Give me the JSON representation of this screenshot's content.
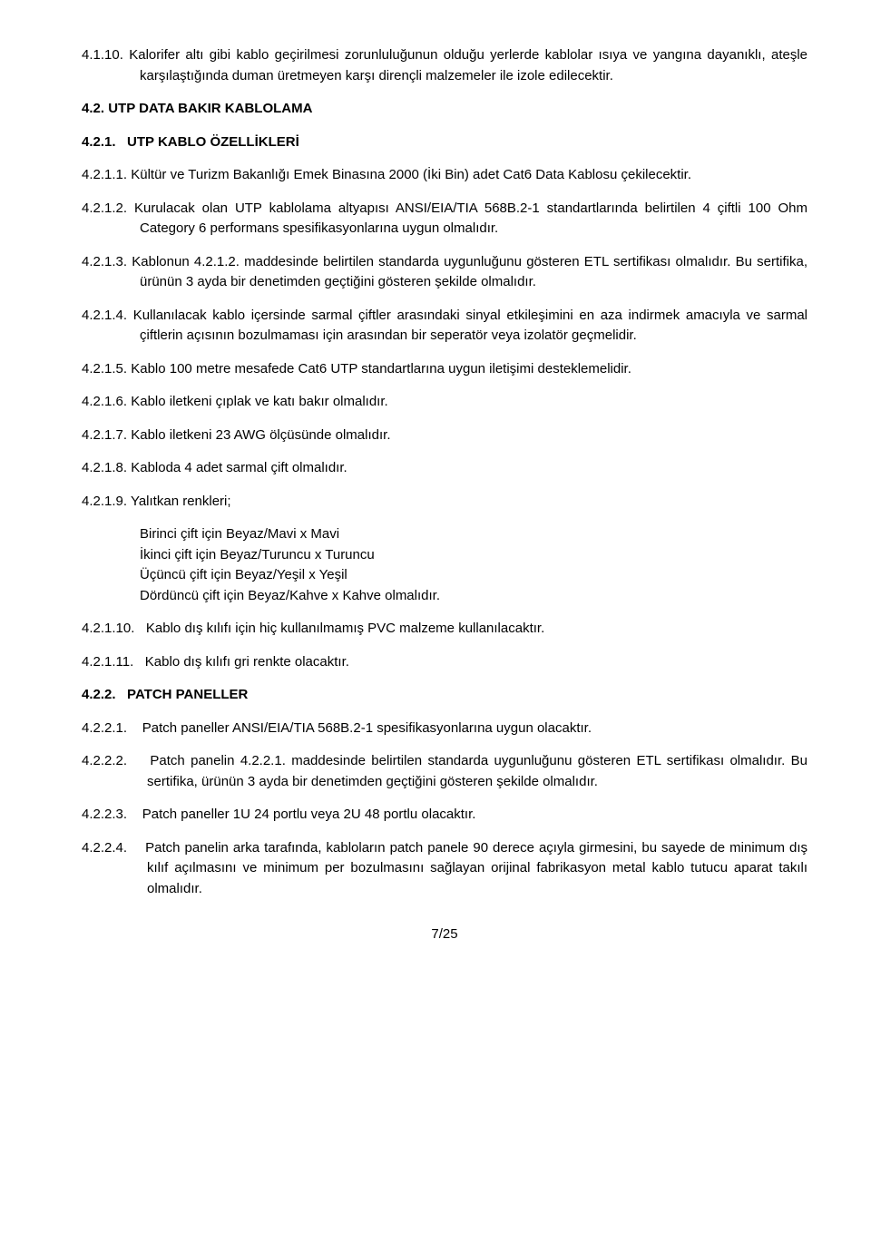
{
  "p_4_1_10": {
    "num": "4.1.10.",
    "text": "Kalorifer altı gibi kablo geçirilmesi zorunluluğunun olduğu yerlerde kablolar ısıya ve yangına dayanıklı, ateşle karşılaştığında duman üretmeyen karşı dirençli malzemeler ile izole edilecektir."
  },
  "h_4_2": {
    "num": "4.2.",
    "text": "UTP  DATA  BAKIR  KABLOLAMA"
  },
  "h_4_2_1": {
    "num": "4.2.1.",
    "text": "UTP KABLO ÖZELLİKLERİ"
  },
  "p_4_2_1_1": {
    "num": "4.2.1.1.",
    "text": "Kültür ve Turizm Bakanlığı Emek Binasına 2000 (İki Bin) adet Cat6 Data Kablosu çekilecektir."
  },
  "p_4_2_1_2": {
    "num": "4.2.1.2.",
    "text": "Kurulacak olan UTP kablolama altyapısı ANSI/EIA/TIA 568B.2-1 standartlarında belirtilen 4 çiftli 100 Ohm Category 6 performans spesifikasyonlarına uygun olmalıdır."
  },
  "p_4_2_1_3": {
    "num": "4.2.1.3.",
    "text": "Kablonun 4.2.1.2. maddesinde belirtilen standarda uygunluğunu gösteren ETL sertifikası olmalıdır. Bu sertifika, ürünün 3  ayda bir denetimden geçtiğini gösteren şekilde olmalıdır."
  },
  "p_4_2_1_4": {
    "num": "4.2.1.4.",
    "text": "Kullanılacak kablo içersinde sarmal çiftler arasındaki sinyal etkileşimini en aza indirmek amacıyla ve sarmal çiftlerin açısının bozulmaması için arasından bir seperatör veya izolatör geçmelidir."
  },
  "p_4_2_1_5": {
    "num": "4.2.1.5.",
    "text": "Kablo 100 metre mesafede Cat6 UTP standartlarına uygun iletişimi desteklemelidir."
  },
  "p_4_2_1_6": {
    "num": "4.2.1.6.",
    "text": "Kablo iletkeni çıplak ve katı bakır olmalıdır."
  },
  "p_4_2_1_7": {
    "num": "4.2.1.7.",
    "text": "Kablo iletkeni 23 AWG ölçüsünde olmalıdır."
  },
  "p_4_2_1_8": {
    "num": "4.2.1.8.",
    "text": "Kabloda 4 adet sarmal çift olmalıdır."
  },
  "p_4_2_1_9": {
    "num": "4.2.1.9.",
    "text": "Yalıtkan renkleri;"
  },
  "colors": {
    "line1": "Birinci çift için Beyaz/Mavi x Mavi",
    "line2": "İkinci çift için Beyaz/Turuncu x Turuncu",
    "line3": "Üçüncü çift için Beyaz/Yeşil x Yeşil",
    "line4": "Dördüncü çift için Beyaz/Kahve x Kahve olmalıdır."
  },
  "p_4_2_1_10": {
    "num": "4.2.1.10.",
    "text": "Kablo dış kılıfı için hiç kullanılmamış PVC malzeme kullanılacaktır."
  },
  "p_4_2_1_11": {
    "num": "4.2.1.11.",
    "text": "Kablo dış kılıfı gri renkte olacaktır."
  },
  "h_4_2_2": {
    "num": "4.2.2.",
    "text": "PATCH PANELLER"
  },
  "p_4_2_2_1": {
    "num": "4.2.2.1.",
    "text": "Patch paneller ANSI/EIA/TIA 568B.2-1 spesifikasyonlarına uygun olacaktır."
  },
  "p_4_2_2_2": {
    "num": "4.2.2.2.",
    "text": "Patch panelin 4.2.2.1. maddesinde belirtilen standarda uygunluğunu gösteren ETL sertifikası olmalıdır. Bu sertifika, ürünün 3 ayda bir denetimden geçtiğini gösteren şekilde olmalıdır."
  },
  "p_4_2_2_3": {
    "num": "4.2.2.3.",
    "text": "Patch paneller 1U 24 portlu veya 2U 48 portlu olacaktır."
  },
  "p_4_2_2_4": {
    "num": "4.2.2.4.",
    "text": "Patch panelin arka tarafında, kabloların patch panele 90 derece açıyla girmesini, bu sayede de minimum dış kılıf açılmasını ve minimum per bozulmasını sağlayan orijinal fabrikasyon metal kablo tutucu aparat takılı olmalıdır."
  },
  "pagenum": "7/25"
}
